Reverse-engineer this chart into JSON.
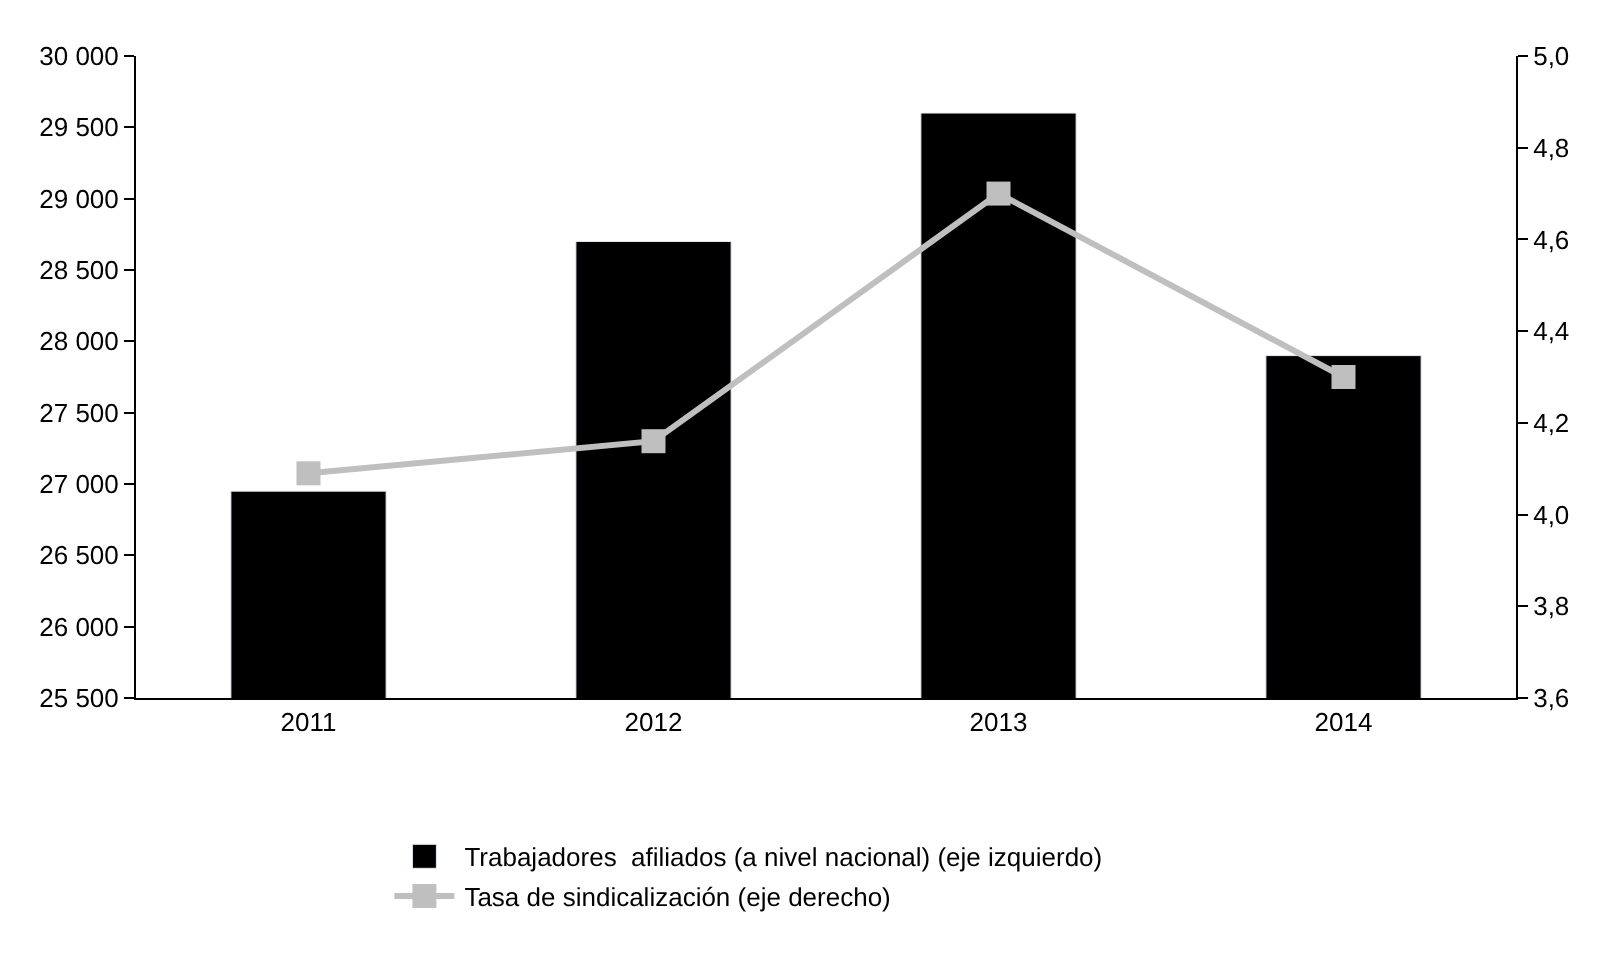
{
  "chart_data": {
    "type": "bar",
    "categories": [
      "2011",
      "2012",
      "2013",
      "2014"
    ],
    "series": [
      {
        "name": "Trabajadores  afiliados (a nivel nacional) (eje izquierdo)",
        "color": "#000000",
        "values": [
          26950,
          28700,
          29600,
          27900
        ]
      },
      {
        "name": "Tasa de sindicalización (eje derecho)",
        "type": "line",
        "axis": "y2",
        "color": "#bfbfbf",
        "marker": "square",
        "values": [
          4.09,
          4.16,
          4.7,
          4.3
        ]
      }
    ],
    "ylim": [
      25500,
      30000
    ],
    "yticks": [
      {
        "value": 25500,
        "label": "25 500"
      },
      {
        "value": 26000,
        "label": "26 000"
      },
      {
        "value": 26500,
        "label": "26 500"
      },
      {
        "value": 27000,
        "label": "27 000"
      },
      {
        "value": 27500,
        "label": "27 500"
      },
      {
        "value": 28000,
        "label": "28 000"
      },
      {
        "value": 28500,
        "label": "28 500"
      },
      {
        "value": 29000,
        "label": "29 000"
      },
      {
        "value": 29500,
        "label": "29 500"
      },
      {
        "value": 30000,
        "label": "30 000"
      }
    ],
    "y2lim": [
      3.6,
      5.0
    ],
    "y2ticks": [
      {
        "value": 3.6,
        "label": "3,6"
      },
      {
        "value": 3.8,
        "label": "3,8"
      },
      {
        "value": 4.0,
        "label": "4,0"
      },
      {
        "value": 4.2,
        "label": "4,2"
      },
      {
        "value": 4.4,
        "label": "4,4"
      },
      {
        "value": 4.6,
        "label": "4,6"
      },
      {
        "value": 4.8,
        "label": "4,8"
      },
      {
        "value": 5.0,
        "label": "5,0"
      }
    ],
    "legend": "bottom"
  }
}
